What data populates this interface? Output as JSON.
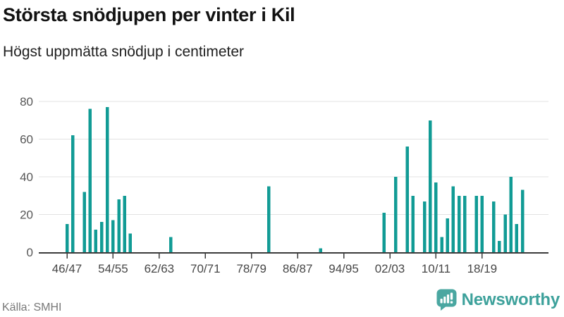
{
  "header": {
    "title": "Största snödjupen per vinter i Kil",
    "subtitle": "Högst uppmätta snödjup i centimeter"
  },
  "footer": {
    "source": "Källa: SMHI",
    "brand": "Newsworthy",
    "brand_icon": "newsworthy-speech-bubble-barchart-icon"
  },
  "colors": {
    "bar": "#119b95",
    "brand_text": "#3da19b",
    "icon_bg": "#4aa7a1",
    "gridline": "#e3e3e3",
    "axis": "#3b3b3b"
  },
  "chart_data": {
    "type": "bar",
    "title": "Största snödjupen per vinter i Kil",
    "subtitle": "Högst uppmätta snödjup i centimeter",
    "unit": "centimeter",
    "ylim": [
      0,
      80
    ],
    "y_ticks": [
      0,
      20,
      40,
      60,
      80
    ],
    "x_tick_labels": [
      "46/47",
      "54/55",
      "62/63",
      "70/71",
      "78/79",
      "86/87",
      "94/95",
      "02/03",
      "10/11",
      "18/19"
    ],
    "grid": true,
    "legend": "none",
    "points": [
      {
        "winter": "46/47",
        "value": 15
      },
      {
        "winter": "47/48",
        "value": 62
      },
      {
        "winter": "49/50",
        "value": 32
      },
      {
        "winter": "50/51",
        "value": 76
      },
      {
        "winter": "51/52",
        "value": 12
      },
      {
        "winter": "52/53",
        "value": 16
      },
      {
        "winter": "53/54",
        "value": 77
      },
      {
        "winter": "54/55",
        "value": 17
      },
      {
        "winter": "55/56",
        "value": 28
      },
      {
        "winter": "56/57",
        "value": 30
      },
      {
        "winter": "57/58",
        "value": 10
      },
      {
        "winter": "64/65",
        "value": 8
      },
      {
        "winter": "81/82",
        "value": 35
      },
      {
        "winter": "90/91",
        "value": 2
      },
      {
        "winter": "01/02",
        "value": 21
      },
      {
        "winter": "03/04",
        "value": 40
      },
      {
        "winter": "05/06",
        "value": 56
      },
      {
        "winter": "06/07",
        "value": 30
      },
      {
        "winter": "08/09",
        "value": 27
      },
      {
        "winter": "09/10",
        "value": 70
      },
      {
        "winter": "10/11",
        "value": 37
      },
      {
        "winter": "11/12",
        "value": 8
      },
      {
        "winter": "12/13",
        "value": 18
      },
      {
        "winter": "13/14",
        "value": 35
      },
      {
        "winter": "14/15",
        "value": 30
      },
      {
        "winter": "15/16",
        "value": 30
      },
      {
        "winter": "17/18",
        "value": 30
      },
      {
        "winter": "18/19",
        "value": 30
      },
      {
        "winter": "20/21",
        "value": 27
      },
      {
        "winter": "21/22",
        "value": 6
      },
      {
        "winter": "22/23",
        "value": 20
      },
      {
        "winter": "23/24",
        "value": 40
      },
      {
        "winter": "24/25",
        "value": 15
      },
      {
        "winter": "25/26",
        "value": 33
      }
    ]
  }
}
